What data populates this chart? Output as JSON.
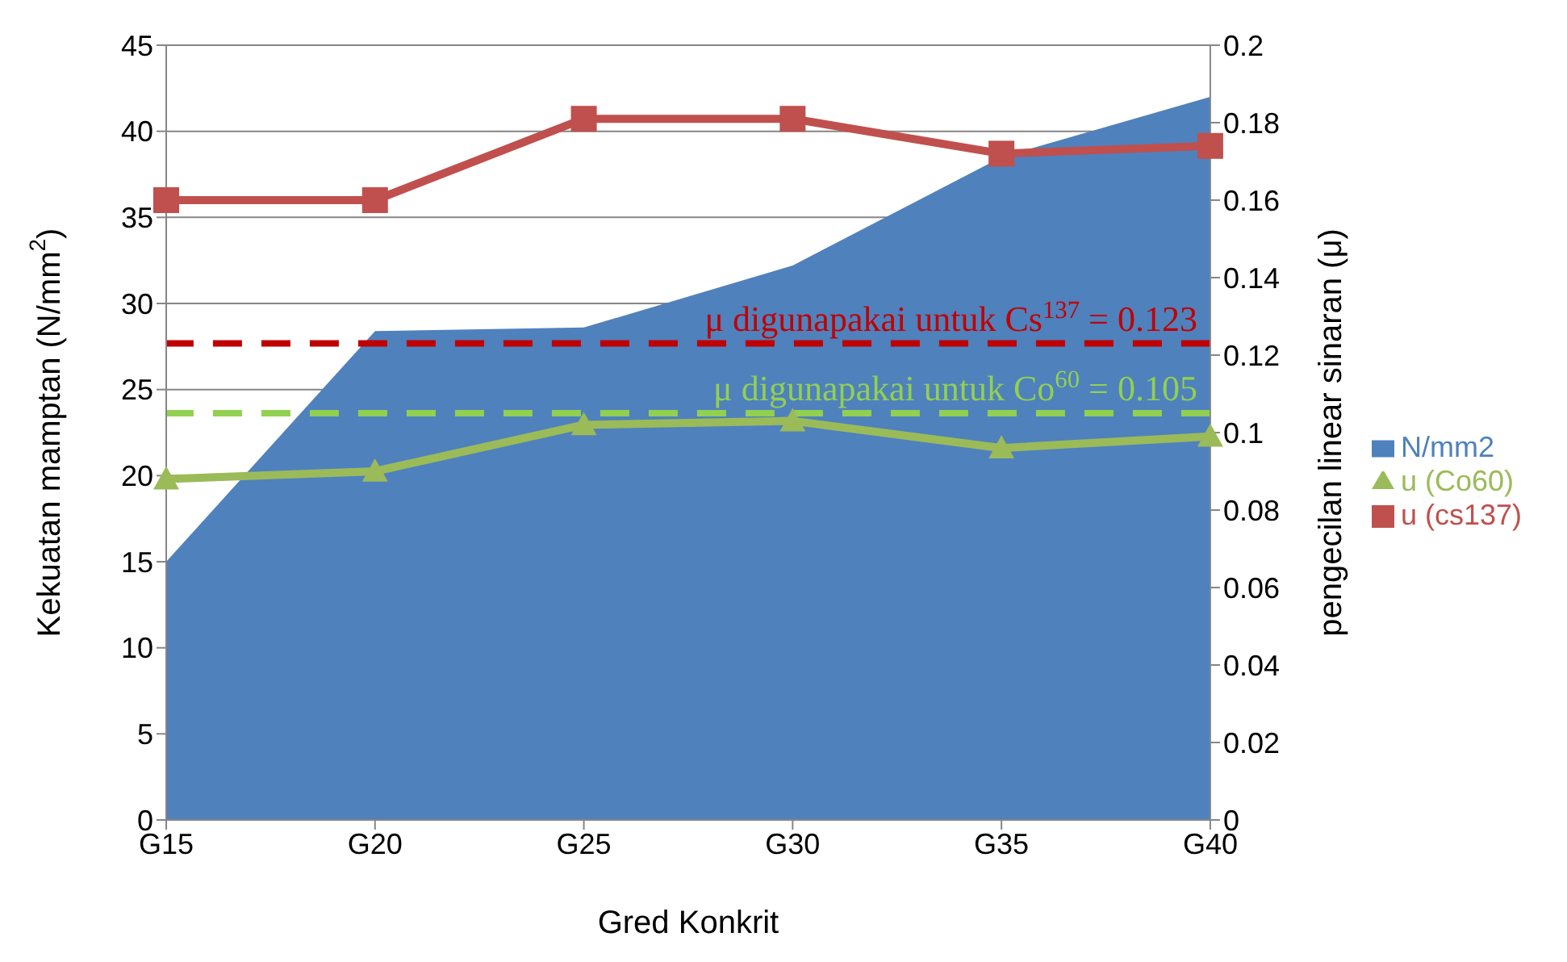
{
  "chart_data": {
    "type": "area",
    "xlabel": "Gred Konkrit",
    "ylabel": "Kekuatan mamptan (N/mm$^{2}$)",
    "y2label": "pengecilan linear sinaran (μ)",
    "categories": [
      "G15",
      "G20",
      "G25",
      "G30",
      "G35",
      "G40"
    ],
    "series": [
      {
        "name": "N/mm2",
        "color": "#4f81bd",
        "values": [
          15,
          28.4,
          28.6,
          32.2,
          38.5,
          42
        ]
      },
      {
        "name": "u (cs137)",
        "type": "line",
        "axis": "y2",
        "color": "#c0504d",
        "marker": "square",
        "values": [
          0.16,
          0.16,
          0.181,
          0.181,
          0.172,
          0.174
        ]
      },
      {
        "name": "u (Co60)",
        "type": "line",
        "axis": "y2",
        "color": "#9bbb59",
        "marker": "triangle",
        "values": [
          0.088,
          0.09,
          0.102,
          0.103,
          0.096,
          0.099
        ]
      }
    ],
    "ylim": [
      0,
      45
    ],
    "yticks": [
      0,
      5,
      10,
      15,
      20,
      25,
      30,
      35,
      40,
      45
    ],
    "y2lim": [
      0,
      0.2
    ],
    "y2ticks": [
      0,
      0.02,
      0.04,
      0.06,
      0.08,
      0.1,
      0.12,
      0.14,
      0.16,
      0.18,
      0.2
    ],
    "ref_lines": [
      {
        "axis": "y2",
        "value": 0.123,
        "label": "μ digunapakai untuk Cs$^{137}$ = 0.123",
        "color": "#c00000",
        "line_style": "dashed"
      },
      {
        "axis": "y2",
        "value": 0.105,
        "label": "μ digunapakai untuk Co$^{60}$ = 0.105",
        "color": "#92d050",
        "line_style": "dashed"
      }
    ],
    "grid": "y",
    "legend": "right"
  }
}
